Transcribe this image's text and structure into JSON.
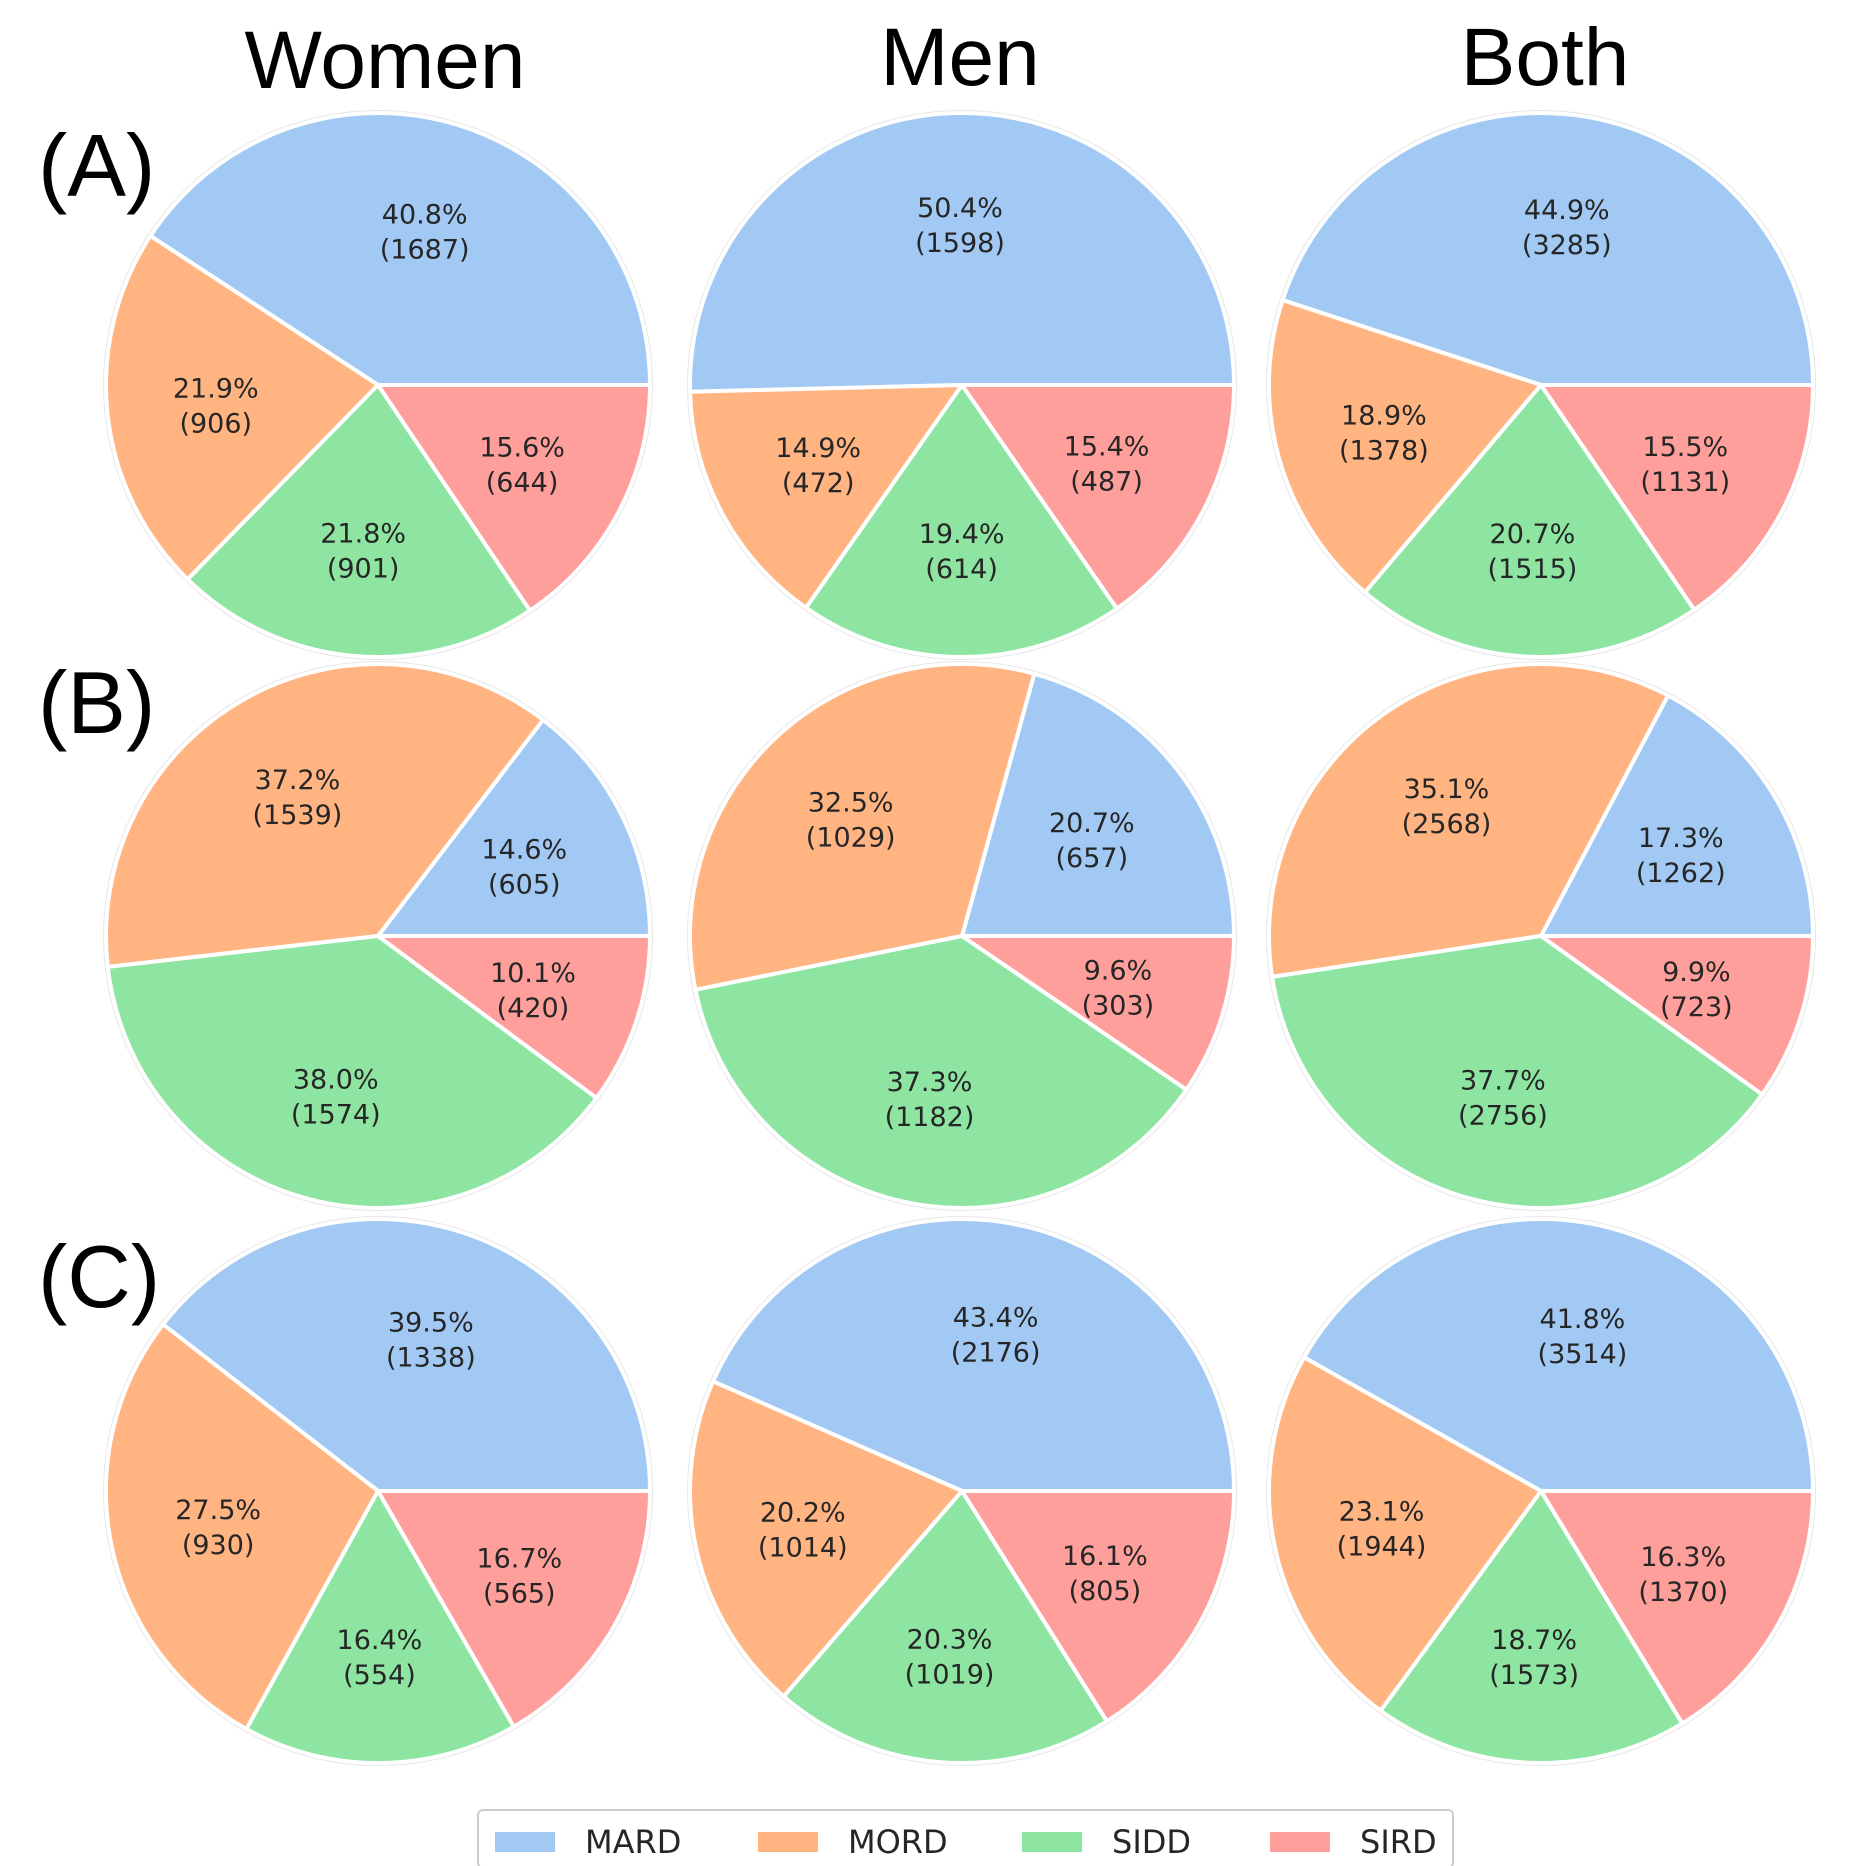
{
  "column_titles": [
    "Women",
    "Men",
    "Both"
  ],
  "row_labels": [
    "(A)",
    "(B)",
    "(C)"
  ],
  "legend": {
    "items": [
      {
        "label": "MARD",
        "color": "#a1c9f4"
      },
      {
        "label": "MORD",
        "color": "#ffb482"
      },
      {
        "label": "SIDD",
        "color": "#8de5a1"
      },
      {
        "label": "SIRD",
        "color": "#ff9f9b"
      }
    ]
  },
  "chart_data": [
    {
      "type": "pie",
      "row": "(A)",
      "column": "Women",
      "categories": [
        "MARD",
        "MORD",
        "SIDD",
        "SIRD"
      ],
      "values": [
        1687,
        906,
        901,
        644
      ],
      "percent_labels": [
        "40.8%",
        "21.9%",
        "21.8%",
        "15.6%"
      ],
      "count_labels": [
        "(1687)",
        "(906)",
        "(901)",
        "(644)"
      ]
    },
    {
      "type": "pie",
      "row": "(A)",
      "column": "Men",
      "categories": [
        "MARD",
        "MORD",
        "SIDD",
        "SIRD"
      ],
      "values": [
        1598,
        472,
        614,
        487
      ],
      "percent_labels": [
        "50.4%",
        "14.9%",
        "19.4%",
        "15.4%"
      ],
      "count_labels": [
        "(1598)",
        "(472)",
        "(614)",
        "(487)"
      ]
    },
    {
      "type": "pie",
      "row": "(A)",
      "column": "Both",
      "categories": [
        "MARD",
        "MORD",
        "SIDD",
        "SIRD"
      ],
      "values": [
        3285,
        1378,
        1515,
        1131
      ],
      "percent_labels": [
        "44.9%",
        "18.9%",
        "20.7%",
        "15.5%"
      ],
      "count_labels": [
        "(3285)",
        "(1378)",
        "(1515)",
        "(1131)"
      ]
    },
    {
      "type": "pie",
      "row": "(B)",
      "column": "Women",
      "categories": [
        "MARD",
        "MORD",
        "SIDD",
        "SIRD"
      ],
      "values": [
        605,
        1539,
        1574,
        420
      ],
      "percent_labels": [
        "14.6%",
        "37.2%",
        "38.0%",
        "10.1%"
      ],
      "count_labels": [
        "(605)",
        "(1539)",
        "(1574)",
        "(420)"
      ]
    },
    {
      "type": "pie",
      "row": "(B)",
      "column": "Men",
      "categories": [
        "MARD",
        "MORD",
        "SIDD",
        "SIRD"
      ],
      "values": [
        657,
        1029,
        1182,
        303
      ],
      "percent_labels": [
        "20.7%",
        "32.5%",
        "37.3%",
        "9.6%"
      ],
      "count_labels": [
        "(657)",
        "(1029)",
        "(1182)",
        "(303)"
      ]
    },
    {
      "type": "pie",
      "row": "(B)",
      "column": "Both",
      "categories": [
        "MARD",
        "MORD",
        "SIDD",
        "SIRD"
      ],
      "values": [
        1262,
        2568,
        2756,
        723
      ],
      "percent_labels": [
        "17.3%",
        "35.1%",
        "37.7%",
        "9.9%"
      ],
      "count_labels": [
        "(1262)",
        "(2568)",
        "(2756)",
        "(723)"
      ]
    },
    {
      "type": "pie",
      "row": "(C)",
      "column": "Women",
      "categories": [
        "MARD",
        "MORD",
        "SIDD",
        "SIRD"
      ],
      "values": [
        1338,
        930,
        554,
        565
      ],
      "percent_labels": [
        "39.5%",
        "27.5%",
        "16.4%",
        "16.7%"
      ],
      "count_labels": [
        "(1338)",
        "(930)",
        "(554)",
        "(565)"
      ]
    },
    {
      "type": "pie",
      "row": "(C)",
      "column": "Men",
      "categories": [
        "MARD",
        "MORD",
        "SIDD",
        "SIRD"
      ],
      "values": [
        2176,
        1014,
        1019,
        805
      ],
      "percent_labels": [
        "43.4%",
        "20.2%",
        "20.3%",
        "16.1%"
      ],
      "count_labels": [
        "(2176)",
        "(1014)",
        "(1019)",
        "(805)"
      ]
    },
    {
      "type": "pie",
      "row": "(C)",
      "column": "Both",
      "categories": [
        "MARD",
        "MORD",
        "SIDD",
        "SIRD"
      ],
      "values": [
        3514,
        1944,
        1573,
        1370
      ],
      "percent_labels": [
        "41.8%",
        "23.1%",
        "18.7%",
        "16.3%"
      ],
      "count_labels": [
        "(3514)",
        "(1944)",
        "(1573)",
        "(1370)"
      ]
    }
  ]
}
